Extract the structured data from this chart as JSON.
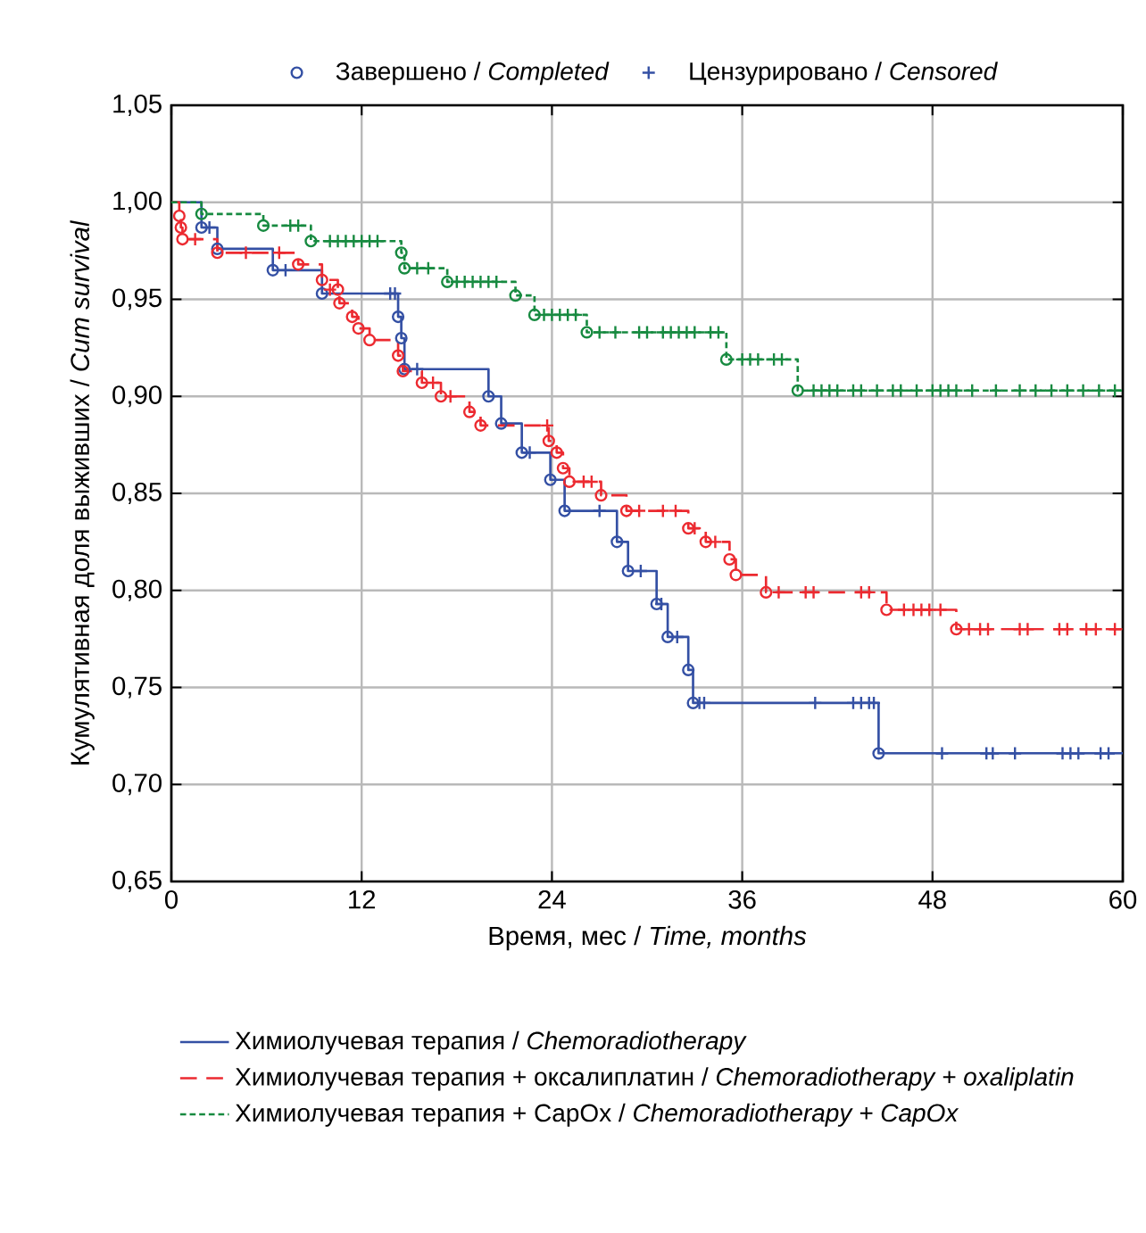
{
  "chart_data": {
    "type": "step",
    "xlabel": "Время, мес / *Time, months*",
    "ylabel": "Кумулятивная доля выживших / *Cum survival*",
    "xlim": [
      0,
      60
    ],
    "xticks": [
      0,
      12,
      24,
      36,
      48,
      60
    ],
    "ylim": [
      0.65,
      1.05
    ],
    "yticks": [
      {
        "value": 0.65,
        "label": "0,65"
      },
      {
        "value": 0.7,
        "label": "0,70"
      },
      {
        "value": 0.75,
        "label": "0,75"
      },
      {
        "value": 0.8,
        "label": "0,80"
      },
      {
        "value": 0.85,
        "label": "0,85"
      },
      {
        "value": 0.9,
        "label": "0,90"
      },
      {
        "value": 0.95,
        "label": "0,95"
      },
      {
        "value": 1.0,
        "label": "1,00"
      },
      {
        "value": 1.05,
        "label": "1,05"
      }
    ],
    "grid": true,
    "legend": "bottom",
    "series": [
      {
        "name": "Химиолучевая терапия / *Chemoradiotherapy*",
        "color": "#3450a4",
        "line_style": "solid",
        "x": [
          0,
          1.9,
          2.9,
          6.4,
          9.5,
          14.3,
          14.5,
          14.7,
          20.0,
          20.8,
          22.1,
          23.9,
          24.8,
          28.1,
          28.8,
          30.6,
          31.3,
          32.6,
          32.9,
          44.6,
          60
        ],
        "values": [
          1.0,
          0.987,
          0.976,
          0.965,
          0.953,
          0.941,
          0.93,
          0.914,
          0.9,
          0.886,
          0.871,
          0.857,
          0.841,
          0.825,
          0.81,
          0.793,
          0.776,
          0.759,
          0.742,
          0.716,
          0.716
        ]
      },
      {
        "name": "Химиолучевая терапия + оксалиплатин / *Chemoradiotherapy + oxaliplatin*",
        "color": "#ec2a30",
        "line_style": "dashed",
        "x": [
          0,
          0.5,
          0.6,
          0.7,
          2.9,
          8.0,
          9.5,
          10.5,
          10.6,
          11.4,
          11.8,
          12.5,
          14.3,
          14.6,
          15.8,
          17.0,
          18.8,
          19.5,
          23.8,
          24.3,
          24.7,
          25.1,
          27.1,
          28.7,
          32.6,
          33.7,
          35.2,
          35.6,
          37.5,
          45.1,
          49.5,
          60
        ],
        "values": [
          1.0,
          0.993,
          0.987,
          0.981,
          0.974,
          0.968,
          0.96,
          0.955,
          0.948,
          0.941,
          0.935,
          0.929,
          0.921,
          0.913,
          0.907,
          0.9,
          0.892,
          0.885,
          0.877,
          0.871,
          0.863,
          0.856,
          0.849,
          0.841,
          0.832,
          0.825,
          0.816,
          0.808,
          0.799,
          0.79,
          0.78,
          0.78
        ]
      },
      {
        "name": "Химиолучевая терапия + CapOx / *Chemoradiotherapy + CapOx*",
        "color": "#178a40",
        "line_style": "dotted",
        "x": [
          0,
          1.9,
          5.8,
          8.8,
          14.5,
          14.7,
          17.4,
          21.7,
          22.9,
          26.2,
          35.0,
          39.5,
          60
        ],
        "values": [
          1.0,
          0.994,
          0.988,
          0.98,
          0.974,
          0.966,
          0.959,
          0.952,
          0.942,
          0.933,
          0.919,
          0.903,
          0.903
        ]
      },
      {
        "type": "scatter",
        "name": "Завершено / *Completed*",
        "color": "#3450a4",
        "marker": "circle",
        "x": [
          1.9,
          2.9,
          6.4,
          9.5,
          14.3,
          14.5,
          14.7,
          20.0,
          20.8,
          22.1,
          23.9,
          24.8,
          28.1,
          28.8,
          30.6,
          31.3,
          32.6,
          32.9,
          44.6
        ],
        "values": [
          0.987,
          0.976,
          0.965,
          0.953,
          0.941,
          0.93,
          0.914,
          0.9,
          0.886,
          0.871,
          0.857,
          0.841,
          0.825,
          0.81,
          0.793,
          0.776,
          0.759,
          0.742,
          0.716
        ]
      },
      {
        "type": "scatter",
        "color": "#ec2a30",
        "marker": "circle",
        "x": [
          0.5,
          0.6,
          0.7,
          2.9,
          8.0,
          9.5,
          10.5,
          10.6,
          11.4,
          11.8,
          12.5,
          14.3,
          14.6,
          15.8,
          17.0,
          18.8,
          19.5,
          23.8,
          24.3,
          24.7,
          25.1,
          27.1,
          28.7,
          32.6,
          33.7,
          35.2,
          35.6,
          37.5,
          45.1,
          49.5
        ],
        "values": [
          0.993,
          0.987,
          0.981,
          0.974,
          0.968,
          0.96,
          0.955,
          0.948,
          0.941,
          0.935,
          0.929,
          0.921,
          0.913,
          0.907,
          0.9,
          0.892,
          0.885,
          0.877,
          0.871,
          0.863,
          0.856,
          0.849,
          0.841,
          0.832,
          0.825,
          0.816,
          0.808,
          0.799,
          0.79,
          0.78
        ]
      },
      {
        "type": "scatter",
        "color": "#178a40",
        "marker": "circle",
        "x": [
          1.9,
          5.8,
          8.8,
          14.5,
          14.7,
          17.4,
          21.7,
          22.9,
          26.2,
          35.0,
          39.5
        ],
        "values": [
          0.994,
          0.988,
          0.98,
          0.974,
          0.966,
          0.959,
          0.952,
          0.942,
          0.933,
          0.919,
          0.903
        ]
      },
      {
        "type": "scatter",
        "name": "Цензурировано / *Censored*",
        "color": "#3450a4",
        "marker": "cross",
        "x": [
          2.4,
          7.2,
          13.8,
          14.1,
          15.5,
          22.6,
          27.0,
          29.6,
          30.9,
          31.9,
          33.3,
          33.6,
          40.6,
          43.0,
          43.5,
          44.0,
          44.3,
          48.6,
          51.4,
          51.8,
          53.2,
          56.2,
          56.7,
          57.2,
          58.6,
          59.1
        ],
        "values": [
          0.987,
          0.965,
          0.953,
          0.953,
          0.914,
          0.871,
          0.841,
          0.81,
          0.793,
          0.776,
          0.742,
          0.742,
          0.742,
          0.742,
          0.742,
          0.742,
          0.742,
          0.716,
          0.716,
          0.716,
          0.716,
          0.716,
          0.716,
          0.716,
          0.716,
          0.716
        ]
      },
      {
        "type": "scatter",
        "color": "#ec2a30",
        "marker": "cross",
        "x": [
          1.5,
          4.7,
          6.8,
          10.0,
          16.5,
          17.6,
          23.7,
          26.0,
          26.5,
          29.5,
          31.0,
          31.8,
          33.0,
          34.3,
          38.3,
          40.0,
          40.5,
          43.5,
          44.0,
          46.2,
          46.8,
          47.3,
          47.8,
          48.5,
          50.3,
          51.0,
          51.5,
          53.5,
          54.0,
          56.0,
          56.5,
          57.7,
          58.3,
          59.5
        ],
        "values": [
          0.981,
          0.974,
          0.974,
          0.955,
          0.907,
          0.9,
          0.885,
          0.856,
          0.856,
          0.841,
          0.841,
          0.841,
          0.832,
          0.825,
          0.799,
          0.799,
          0.799,
          0.799,
          0.799,
          0.79,
          0.79,
          0.79,
          0.79,
          0.79,
          0.78,
          0.78,
          0.78,
          0.78,
          0.78,
          0.78,
          0.78,
          0.78,
          0.78,
          0.78
        ]
      },
      {
        "type": "scatter",
        "color": "#178a40",
        "marker": "cross",
        "x": [
          7.5,
          8.0,
          10.0,
          10.5,
          11.0,
          11.5,
          12.0,
          12.5,
          13.0,
          15.5,
          16.2,
          18.0,
          18.5,
          19.0,
          19.5,
          20.0,
          20.5,
          23.5,
          24.0,
          24.5,
          25.0,
          25.5,
          27.0,
          28.0,
          29.5,
          30.0,
          31.0,
          31.5,
          32.0,
          32.5,
          33.0,
          34.0,
          34.5,
          36.0,
          36.5,
          37.0,
          38.0,
          38.5,
          40.5,
          41.0,
          41.5,
          42.0,
          43.0,
          43.5,
          44.5,
          45.5,
          46.0,
          47.0,
          48.0,
          48.5,
          49.0,
          49.5,
          50.5,
          52.0,
          53.5,
          54.5,
          55.5,
          56.5,
          57.5,
          58.5,
          59.5
        ],
        "values": [
          0.988,
          0.988,
          0.98,
          0.98,
          0.98,
          0.98,
          0.98,
          0.98,
          0.98,
          0.966,
          0.966,
          0.959,
          0.959,
          0.959,
          0.959,
          0.959,
          0.959,
          0.942,
          0.942,
          0.942,
          0.942,
          0.942,
          0.933,
          0.933,
          0.933,
          0.933,
          0.933,
          0.933,
          0.933,
          0.933,
          0.933,
          0.933,
          0.933,
          0.919,
          0.919,
          0.919,
          0.919,
          0.919,
          0.903,
          0.903,
          0.903,
          0.903,
          0.903,
          0.903,
          0.903,
          0.903,
          0.903,
          0.903,
          0.903,
          0.903,
          0.903,
          0.903,
          0.903,
          0.903,
          0.903,
          0.903,
          0.903,
          0.903,
          0.903,
          0.903,
          0.903
        ]
      }
    ]
  }
}
